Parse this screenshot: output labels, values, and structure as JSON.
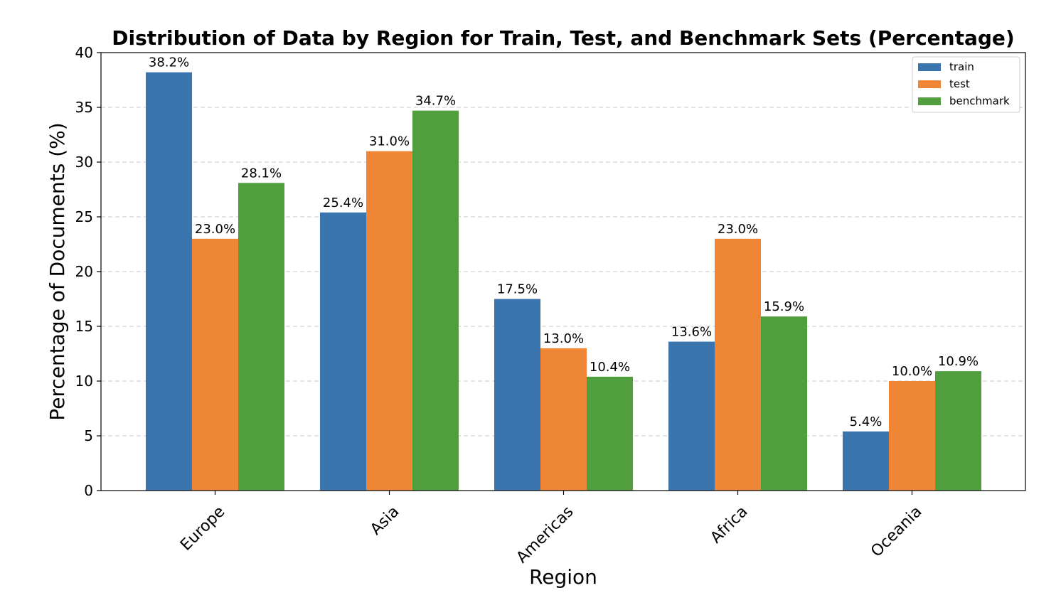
{
  "chart_data": {
    "type": "bar",
    "title": "Distribution of Data by Region for Train, Test, and Benchmark Sets (Percentage)",
    "xlabel": "Region",
    "ylabel": "Percentage of Documents (%)",
    "categories": [
      "Europe",
      "Asia",
      "Americas",
      "Africa",
      "Oceania"
    ],
    "series": [
      {
        "name": "train",
        "color": "#3a75b0",
        "values": [
          38.2,
          25.4,
          17.5,
          13.6,
          5.4
        ]
      },
      {
        "name": "test",
        "color": "#ef8636",
        "values": [
          23.0,
          31.0,
          13.0,
          23.0,
          10.0
        ]
      },
      {
        "name": "benchmark",
        "color": "#519e3e",
        "values": [
          28.1,
          34.7,
          10.4,
          15.9,
          10.9
        ]
      }
    ],
    "data_labels": [
      [
        "38.2%",
        "25.4%",
        "17.5%",
        "13.6%",
        "5.4%"
      ],
      [
        "23.0%",
        "31.0%",
        "13.0%",
        "23.0%",
        "10.0%"
      ],
      [
        "28.1%",
        "34.7%",
        "10.4%",
        "15.9%",
        "10.9%"
      ]
    ],
    "ylim": [
      0,
      40
    ],
    "yticks": [
      0,
      5,
      10,
      15,
      20,
      25,
      30,
      35,
      40
    ],
    "ytick_labels": [
      "0",
      "5",
      "10",
      "15",
      "20",
      "25",
      "30",
      "35",
      "40"
    ],
    "grid": true,
    "legend_position": "top-right"
  }
}
